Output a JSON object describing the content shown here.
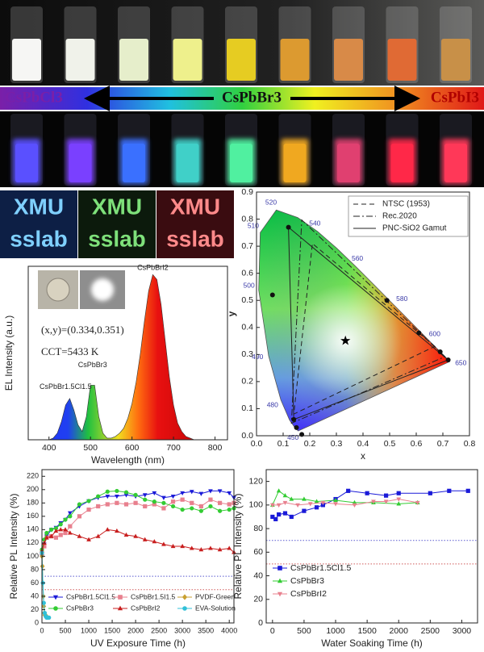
{
  "figure": {
    "gradient_labels": [
      "CsPbCl3",
      "CsPbBr3",
      "CsPbI3"
    ],
    "logo": [
      "XMU",
      "sslab"
    ]
  },
  "chart_data": [
    {
      "type": "spectrum",
      "xlabel": "Wavelength (nm)",
      "ylabel": "EL Intensity (a.u.)",
      "annotations": [
        "(x,y)=(0.334,0.351)",
        "CCT=5433 K"
      ],
      "peak_labels": [
        "CsPbBr1.5Cl1.5",
        "CsPbBr3",
        "CsPbBrI2"
      ],
      "x": [
        380,
        390,
        400,
        410,
        420,
        430,
        440,
        450,
        460,
        470,
        480,
        490,
        500,
        510,
        520,
        530,
        540,
        550,
        560,
        570,
        580,
        590,
        600,
        610,
        620,
        630,
        640,
        650,
        660,
        670,
        680,
        690,
        700,
        710,
        720,
        730,
        740,
        750,
        760,
        770,
        780,
        790,
        800,
        810,
        820
      ],
      "values": [
        0,
        0,
        0,
        0.01,
        0.04,
        0.11,
        0.21,
        0.25,
        0.18,
        0.09,
        0.05,
        0.14,
        0.33,
        0.33,
        0.14,
        0.04,
        0.01,
        0.01,
        0.02,
        0.04,
        0.07,
        0.13,
        0.22,
        0.35,
        0.52,
        0.72,
        0.9,
        1,
        0.97,
        0.82,
        0.6,
        0.38,
        0.21,
        0.1,
        0.05,
        0.02,
        0.01,
        0,
        0,
        0,
        0,
        0,
        0,
        0,
        0
      ],
      "xlim": [
        350,
        830
      ],
      "xticks": [
        400,
        500,
        600,
        700,
        800
      ],
      "ylim": [
        0,
        1.05
      ]
    },
    {
      "type": "cie",
      "xlabel": "x",
      "ylabel": "y",
      "xlim": [
        0,
        0.8
      ],
      "ylim": [
        0,
        0.9
      ],
      "xticks": [
        {
          "value": 0,
          "label": "0.0"
        },
        0.1,
        0.2,
        0.3,
        0.4,
        0.5,
        0.6,
        0.7,
        0.8
      ],
      "yticks": [
        {
          "value": 0,
          "label": "0.0"
        },
        0.1,
        0.2,
        0.3,
        0.4,
        0.5,
        0.6,
        0.7,
        0.8,
        0.9
      ],
      "locus": {
        "wavelengths": [
          450,
          null,
          null,
          480,
          490,
          500,
          510,
          520,
          null,
          540,
          null,
          560,
          null,
          580,
          null,
          600,
          null,
          650
        ],
        "x": [
          0.1566,
          0.144,
          0.1241,
          0.0913,
          0.0454,
          0.0082,
          0.0139,
          0.0743,
          0.1547,
          0.2296,
          0.3016,
          0.3731,
          0.4441,
          0.5125,
          0.5752,
          0.627,
          0.6915,
          0.726
        ],
        "y": [
          0.0177,
          0.0297,
          0.0578,
          0.1327,
          0.295,
          0.5384,
          0.7502,
          0.8338,
          0.8059,
          0.7543,
          0.6923,
          0.6245,
          0.5547,
          0.4866,
          0.4242,
          0.3725,
          0.3083,
          0.274
        ]
      },
      "series": [
        {
          "name": "NTSC (1953)",
          "dash": "dashed",
          "x": [
            0.67,
            0.21,
            0.14
          ],
          "y": [
            0.33,
            0.71,
            0.08
          ]
        },
        {
          "name": "Rec.2020",
          "dash": "dashdot",
          "x": [
            0.708,
            0.17,
            0.131
          ],
          "y": [
            0.292,
            0.797,
            0.046
          ]
        },
        {
          "name": "PNC-SiO2 Gamut",
          "dash": "solid",
          "x": [
            0.72,
            0.12,
            0.14
          ],
          "y": [
            0.28,
            0.77,
            0.06
          ]
        }
      ],
      "points": {
        "x": [
          0.06,
          0.12,
          0.49,
          0.61,
          0.69,
          0.72,
          0.14,
          0.15,
          0.17
        ],
        "y": [
          0.52,
          0.77,
          0.5,
          0.38,
          0.31,
          0.28,
          0.06,
          0.03,
          0.005
        ]
      },
      "white_point": {
        "x": 0.334,
        "y": 0.351
      }
    },
    {
      "type": "line",
      "xlabel": "UV Exposure Time (h)",
      "ylabel": "Relative PL Intensity (%)",
      "xlim": [
        0,
        4100
      ],
      "xticks": [
        0,
        500,
        1000,
        1500,
        2000,
        2500,
        3000,
        3500,
        4000
      ],
      "ylim": [
        0,
        230
      ],
      "yticks": [
        0,
        20,
        40,
        60,
        80,
        100,
        120,
        140,
        160,
        180,
        200,
        220
      ],
      "hlines": [
        {
          "value": 70,
          "color": "#5a5ad0"
        },
        {
          "value": 50,
          "color": "#d05a5a"
        }
      ],
      "series": [
        {
          "name": "CsPbBr1.5Cl1.5",
          "color": "#1a1ad8",
          "marker": "triangle-down",
          "x": [
            0,
            50,
            100,
            200,
            300,
            400,
            500,
            600,
            800,
            1000,
            1200,
            1400,
            1600,
            1800,
            2000,
            2200,
            2400,
            2600,
            2800,
            3000,
            3200,
            3400,
            3600,
            3800,
            4000,
            4100
          ],
          "values": [
            100,
            118,
            130,
            140,
            143,
            150,
            155,
            165,
            175,
            183,
            188,
            190,
            190,
            192,
            190,
            192,
            195,
            188,
            190,
            195,
            197,
            194,
            198,
            198,
            195,
            188
          ]
        },
        {
          "name": "CsPbBr1.5I1.5",
          "color": "#e8808e",
          "marker": "square",
          "x": [
            0,
            50,
            100,
            200,
            300,
            400,
            500,
            600,
            800,
            1000,
            1200,
            1400,
            1600,
            1800,
            2000,
            2200,
            2400,
            2600,
            2800,
            3000,
            3200,
            3400,
            3600,
            3800,
            4000,
            4100
          ],
          "values": [
            105,
            115,
            128,
            130,
            128,
            132,
            135,
            145,
            160,
            170,
            175,
            178,
            180,
            178,
            180,
            175,
            178,
            172,
            182,
            185,
            180,
            175,
            185,
            180,
            178,
            180
          ]
        },
        {
          "name": "PVDF-Green",
          "color": "#c8a030",
          "marker": "diamond",
          "x": [
            0,
            10,
            20,
            30,
            40,
            50,
            60,
            80,
            100
          ],
          "values": [
            100,
            85,
            60,
            40,
            25,
            15,
            12,
            10,
            10
          ]
        },
        {
          "name": "CsPbBr3",
          "color": "#33cc33",
          "marker": "circle",
          "x": [
            0,
            50,
            100,
            200,
            300,
            400,
            500,
            600,
            800,
            1000,
            1200,
            1400,
            1600,
            1800,
            2000,
            2200,
            2400,
            2600,
            2800,
            3000,
            3200,
            3400,
            3600,
            3800,
            4000,
            4100
          ],
          "values": [
            110,
            125,
            135,
            140,
            142,
            148,
            155,
            160,
            178,
            183,
            190,
            197,
            198,
            196,
            192,
            185,
            182,
            180,
            175,
            170,
            172,
            168,
            175,
            168,
            170,
            172
          ]
        },
        {
          "name": "CsPbBrI2",
          "color": "#c81e1e",
          "marker": "triangle-up",
          "x": [
            0,
            50,
            100,
            200,
            300,
            400,
            500,
            600,
            800,
            1000,
            1200,
            1400,
            1600,
            1800,
            2000,
            2200,
            2400,
            2600,
            2800,
            3000,
            3200,
            3400,
            3600,
            3800,
            4000,
            4100
          ],
          "values": [
            108,
            120,
            128,
            130,
            138,
            140,
            140,
            135,
            130,
            125,
            130,
            140,
            138,
            132,
            130,
            125,
            122,
            118,
            115,
            115,
            112,
            110,
            112,
            110,
            112,
            106
          ]
        },
        {
          "name": "EVA-Solution",
          "color": "#30c0d8",
          "marker": "circle",
          "x": [
            0,
            20,
            40,
            60,
            80,
            100,
            120,
            150
          ],
          "values": [
            105,
            60,
            30,
            15,
            10,
            8,
            8,
            8
          ]
        }
      ]
    },
    {
      "type": "line",
      "xlabel": "Water Soaking Time (h)",
      "ylabel": "Relative PL Intensity (%)",
      "xlim": [
        -100,
        3250
      ],
      "xticks": [
        0,
        500,
        1000,
        1500,
        2000,
        2500,
        3000
      ],
      "ylim": [
        0,
        130
      ],
      "yticks": [
        0,
        20,
        40,
        60,
        80,
        100,
        120
      ],
      "hlines": [
        {
          "value": 70,
          "color": "#5a5ad0"
        },
        {
          "value": 50,
          "color": "#d05a5a"
        }
      ],
      "series": [
        {
          "name": "CsPbBr1.5Cl1.5",
          "color": "#1a1ad8",
          "marker": "square",
          "x": [
            0,
            50,
            100,
            200,
            300,
            500,
            700,
            800,
            1000,
            1200,
            1500,
            1800,
            2000,
            2500,
            2800,
            3100
          ],
          "values": [
            90,
            88,
            92,
            93,
            90,
            95,
            98,
            100,
            105,
            112,
            110,
            108,
            110,
            110,
            112,
            112
          ]
        },
        {
          "name": "CsPbBr3",
          "color": "#33cc33",
          "marker": "triangle-up",
          "x": [
            0,
            100,
            200,
            300,
            500,
            700,
            1000,
            1300,
            1600,
            2000,
            2300
          ],
          "values": [
            100,
            112,
            108,
            105,
            105,
            103,
            104,
            102,
            102,
            101,
            102
          ]
        },
        {
          "name": "CsPbBrI2",
          "color": "#e8808e",
          "marker": "triangle-down",
          "x": [
            0,
            100,
            200,
            400,
            600,
            800,
            1000,
            1300,
            1600,
            1800,
            2000,
            2300
          ],
          "values": [
            100,
            100,
            102,
            100,
            101,
            102,
            101,
            100,
            103,
            103,
            105,
            102
          ]
        }
      ]
    }
  ]
}
